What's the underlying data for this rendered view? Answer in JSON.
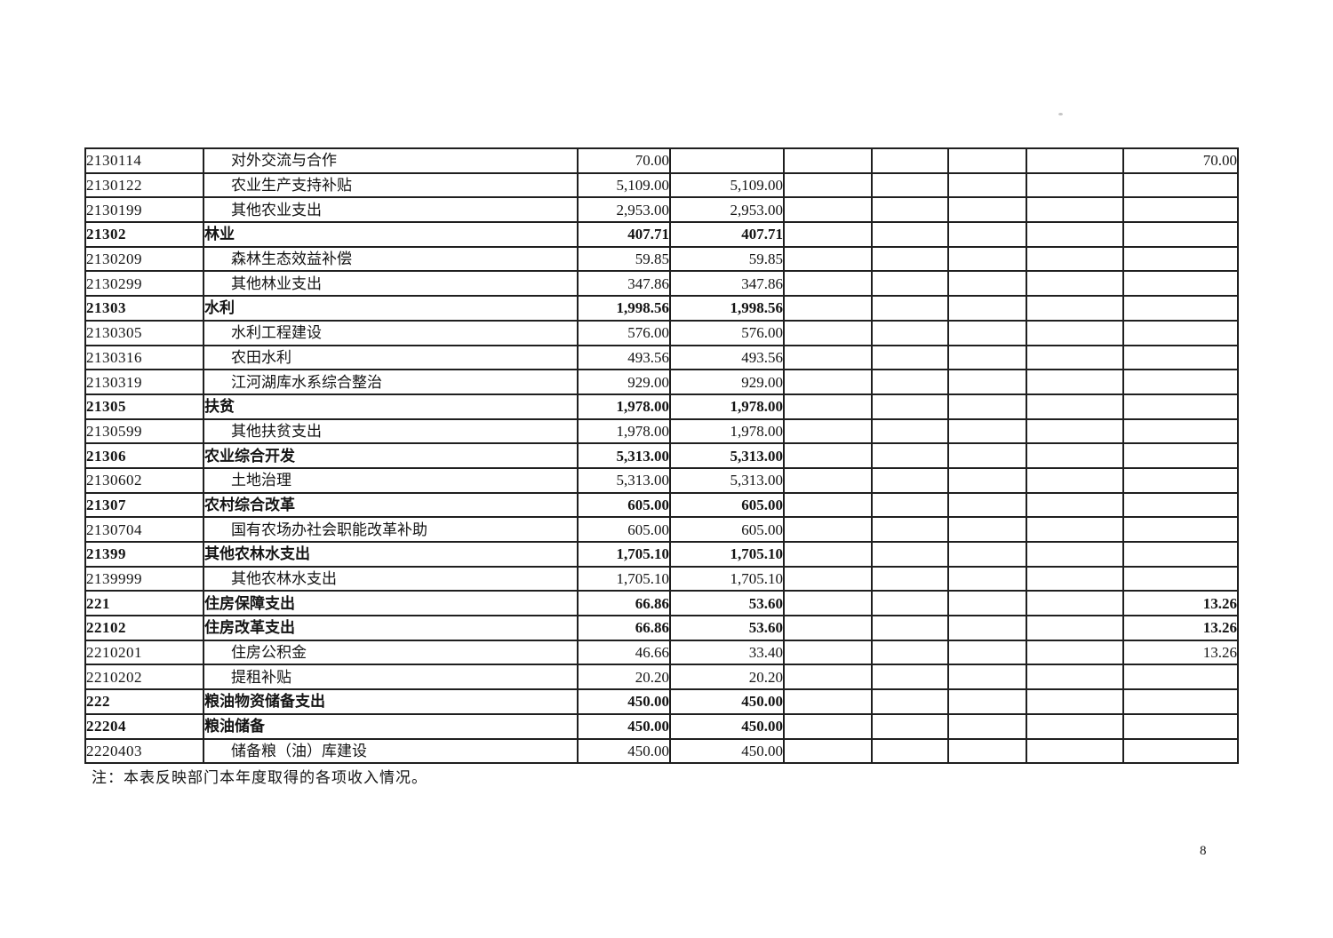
{
  "page_number": "8",
  "footnote": "注：本表反映部门本年度取得的各项收入情况。",
  "table": {
    "rows": [
      {
        "code": "2130114",
        "name": "对外交流与合作",
        "bold": false,
        "values": [
          "70.00",
          "",
          "",
          "",
          "",
          "",
          "70.00"
        ]
      },
      {
        "code": "2130122",
        "name": "农业生产支持补贴",
        "bold": false,
        "values": [
          "5,109.00",
          "5,109.00",
          "",
          "",
          "",
          "",
          ""
        ]
      },
      {
        "code": "2130199",
        "name": "其他农业支出",
        "bold": false,
        "values": [
          "2,953.00",
          "2,953.00",
          "",
          "",
          "",
          "",
          ""
        ]
      },
      {
        "code": "21302",
        "name": "林业",
        "bold": true,
        "values": [
          "407.71",
          "407.71",
          "",
          "",
          "",
          "",
          ""
        ]
      },
      {
        "code": "2130209",
        "name": "森林生态效益补偿",
        "bold": false,
        "values": [
          "59.85",
          "59.85",
          "",
          "",
          "",
          "",
          ""
        ]
      },
      {
        "code": "2130299",
        "name": "其他林业支出",
        "bold": false,
        "values": [
          "347.86",
          "347.86",
          "",
          "",
          "",
          "",
          ""
        ]
      },
      {
        "code": "21303",
        "name": "水利",
        "bold": true,
        "values": [
          "1,998.56",
          "1,998.56",
          "",
          "",
          "",
          "",
          ""
        ]
      },
      {
        "code": "2130305",
        "name": "水利工程建设",
        "bold": false,
        "values": [
          "576.00",
          "576.00",
          "",
          "",
          "",
          "",
          ""
        ]
      },
      {
        "code": "2130316",
        "name": "农田水利",
        "bold": false,
        "values": [
          "493.56",
          "493.56",
          "",
          "",
          "",
          "",
          ""
        ]
      },
      {
        "code": "2130319",
        "name": "江河湖库水系综合整治",
        "bold": false,
        "values": [
          "929.00",
          "929.00",
          "",
          "",
          "",
          "",
          ""
        ]
      },
      {
        "code": "21305",
        "name": "扶贫",
        "bold": true,
        "values": [
          "1,978.00",
          "1,978.00",
          "",
          "",
          "",
          "",
          ""
        ]
      },
      {
        "code": "2130599",
        "name": "其他扶贫支出",
        "bold": false,
        "values": [
          "1,978.00",
          "1,978.00",
          "",
          "",
          "",
          "",
          ""
        ]
      },
      {
        "code": "21306",
        "name": "农业综合开发",
        "bold": true,
        "values": [
          "5,313.00",
          "5,313.00",
          "",
          "",
          "",
          "",
          ""
        ]
      },
      {
        "code": "2130602",
        "name": "土地治理",
        "bold": false,
        "values": [
          "5,313.00",
          "5,313.00",
          "",
          "",
          "",
          "",
          ""
        ]
      },
      {
        "code": "21307",
        "name": "农村综合改革",
        "bold": true,
        "values": [
          "605.00",
          "605.00",
          "",
          "",
          "",
          "",
          ""
        ]
      },
      {
        "code": "2130704",
        "name": "国有农场办社会职能改革补助",
        "bold": false,
        "values": [
          "605.00",
          "605.00",
          "",
          "",
          "",
          "",
          ""
        ]
      },
      {
        "code": "21399",
        "name": "其他农林水支出",
        "bold": true,
        "values": [
          "1,705.10",
          "1,705.10",
          "",
          "",
          "",
          "",
          ""
        ]
      },
      {
        "code": "2139999",
        "name": "其他农林水支出",
        "bold": false,
        "values": [
          "1,705.10",
          "1,705.10",
          "",
          "",
          "",
          "",
          ""
        ]
      },
      {
        "code": "221",
        "name": "住房保障支出",
        "bold": true,
        "values": [
          "66.86",
          "53.60",
          "",
          "",
          "",
          "",
          "13.26"
        ]
      },
      {
        "code": "22102",
        "name": "住房改革支出",
        "bold": true,
        "values": [
          "66.86",
          "53.60",
          "",
          "",
          "",
          "",
          "13.26"
        ]
      },
      {
        "code": "2210201",
        "name": "住房公积金",
        "bold": false,
        "values": [
          "46.66",
          "33.40",
          "",
          "",
          "",
          "",
          "13.26"
        ]
      },
      {
        "code": "2210202",
        "name": "提租补贴",
        "bold": false,
        "values": [
          "20.20",
          "20.20",
          "",
          "",
          "",
          "",
          ""
        ]
      },
      {
        "code": "222",
        "name": "粮油物资储备支出",
        "bold": true,
        "values": [
          "450.00",
          "450.00",
          "",
          "",
          "",
          "",
          ""
        ]
      },
      {
        "code": "22204",
        "name": "粮油储备",
        "bold": true,
        "values": [
          "450.00",
          "450.00",
          "",
          "",
          "",
          "",
          ""
        ]
      },
      {
        "code": "2220403",
        "name": "储备粮（油）库建设",
        "bold": false,
        "values": [
          "450.00",
          "450.00",
          "",
          "",
          "",
          "",
          ""
        ]
      }
    ]
  }
}
